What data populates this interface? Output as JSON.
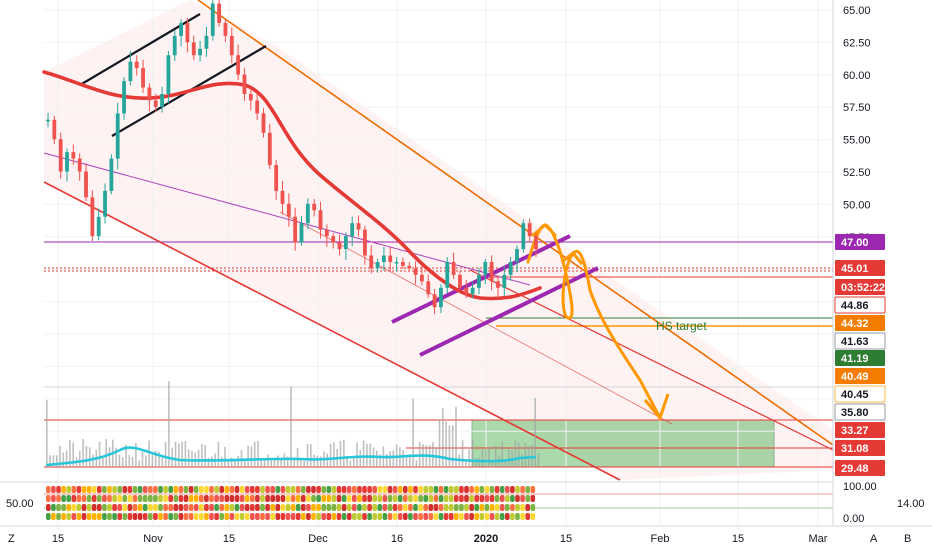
{
  "chart_data": {
    "type": "candlestick",
    "y_axis": {
      "range": [
        33.0,
        66.0
      ],
      "tick_labels": [
        "65.00",
        "62.50",
        "60.00",
        "57.50",
        "55.00",
        "52.50",
        "50.00",
        "47.50"
      ]
    },
    "price_badges": [
      {
        "label": "47.00",
        "bg": "#9c27b0",
        "fg": "#ffffff"
      },
      {
        "label": "45.01",
        "bg": "#e53935",
        "fg": "#ffffff"
      },
      {
        "label": "03:52:22",
        "bg": "#e53935",
        "fg": "#ffffff"
      },
      {
        "label": "44.86",
        "bg": "#ffffff",
        "fg": "#131722",
        "border": "#e53935"
      },
      {
        "label": "44.32",
        "bg": "#f57c00",
        "fg": "#ffffff"
      },
      {
        "label": "41.63",
        "bg": "#ffffff",
        "fg": "#131722",
        "border": "#9598a1"
      },
      {
        "label": "41.19",
        "bg": "#2e7d32",
        "fg": "#ffffff"
      },
      {
        "label": "40.49",
        "bg": "#f57c00",
        "fg": "#ffffff"
      },
      {
        "label": "40.45",
        "bg": "#ffffff",
        "fg": "#131722",
        "border": "#ffb74d"
      },
      {
        "label": "35.80",
        "bg": "#ffffff",
        "fg": "#131722",
        "border": "#9598a1"
      },
      {
        "label": "33.27",
        "bg": "#e53935",
        "fg": "#ffffff"
      },
      {
        "label": "31.08",
        "bg": "#e53935",
        "fg": "#ffffff"
      },
      {
        "label": "29.48",
        "bg": "#e53935",
        "fg": "#ffffff"
      }
    ],
    "indicator_axis": {
      "tick_labels": [
        "100.00",
        "0.00"
      ],
      "left_label": "50.00",
      "right_label": "14.00"
    },
    "x_axis": {
      "tick_labels": [
        "15",
        "Nov",
        "15",
        "Dec",
        "16",
        "2020",
        "15",
        "Feb",
        "15",
        "Mar"
      ],
      "corner_left": "Z",
      "corner_mid": "A",
      "corner_right": "B"
    },
    "annotations": [
      {
        "text": "HS target",
        "color": "#2e7d32"
      }
    ],
    "colors": {
      "up": "#26a69a",
      "down": "#ef5350",
      "ma": "#e53935",
      "channel": "#f44336",
      "arrows": "#ff9800",
      "purple": "#9c27b0",
      "volume": "#9e9e9e",
      "volume_ma": "#26c6da",
      "target_box": "#66bb6a"
    },
    "series": [
      {
        "values": [
          56.5,
          55.0,
          52.5,
          54.0,
          53.5,
          52.5,
          50.5,
          47.5,
          49.0,
          51.0,
          53.5,
          57.0,
          59.5,
          61.0,
          60.5,
          59.0,
          58.0,
          57.5,
          58.5,
          61.5,
          63.0,
          64.0,
          62.5,
          61.5,
          62.0,
          63.0,
          65.5,
          64.0,
          63.0,
          61.5,
          60.0,
          58.5,
          58.0,
          57.0,
          55.5,
          53.0,
          51.0,
          50.0,
          49.0,
          47.0,
          48.5,
          50.0,
          49.5,
          48.0,
          47.5,
          47.0,
          46.5,
          47.5,
          48.5,
          48.0,
          46.0,
          45.0,
          45.5,
          46.0,
          45.5,
          45.5,
          45.2,
          45.0,
          44.5,
          44.0,
          43.0,
          42.0,
          43.5,
          45.5,
          44.5,
          43.5,
          43.0,
          43.5,
          44.5,
          45.5,
          44.0,
          43.5,
          44.5,
          45.5,
          46.5,
          48.5,
          47.5,
          46.5
        ]
      }
    ]
  }
}
